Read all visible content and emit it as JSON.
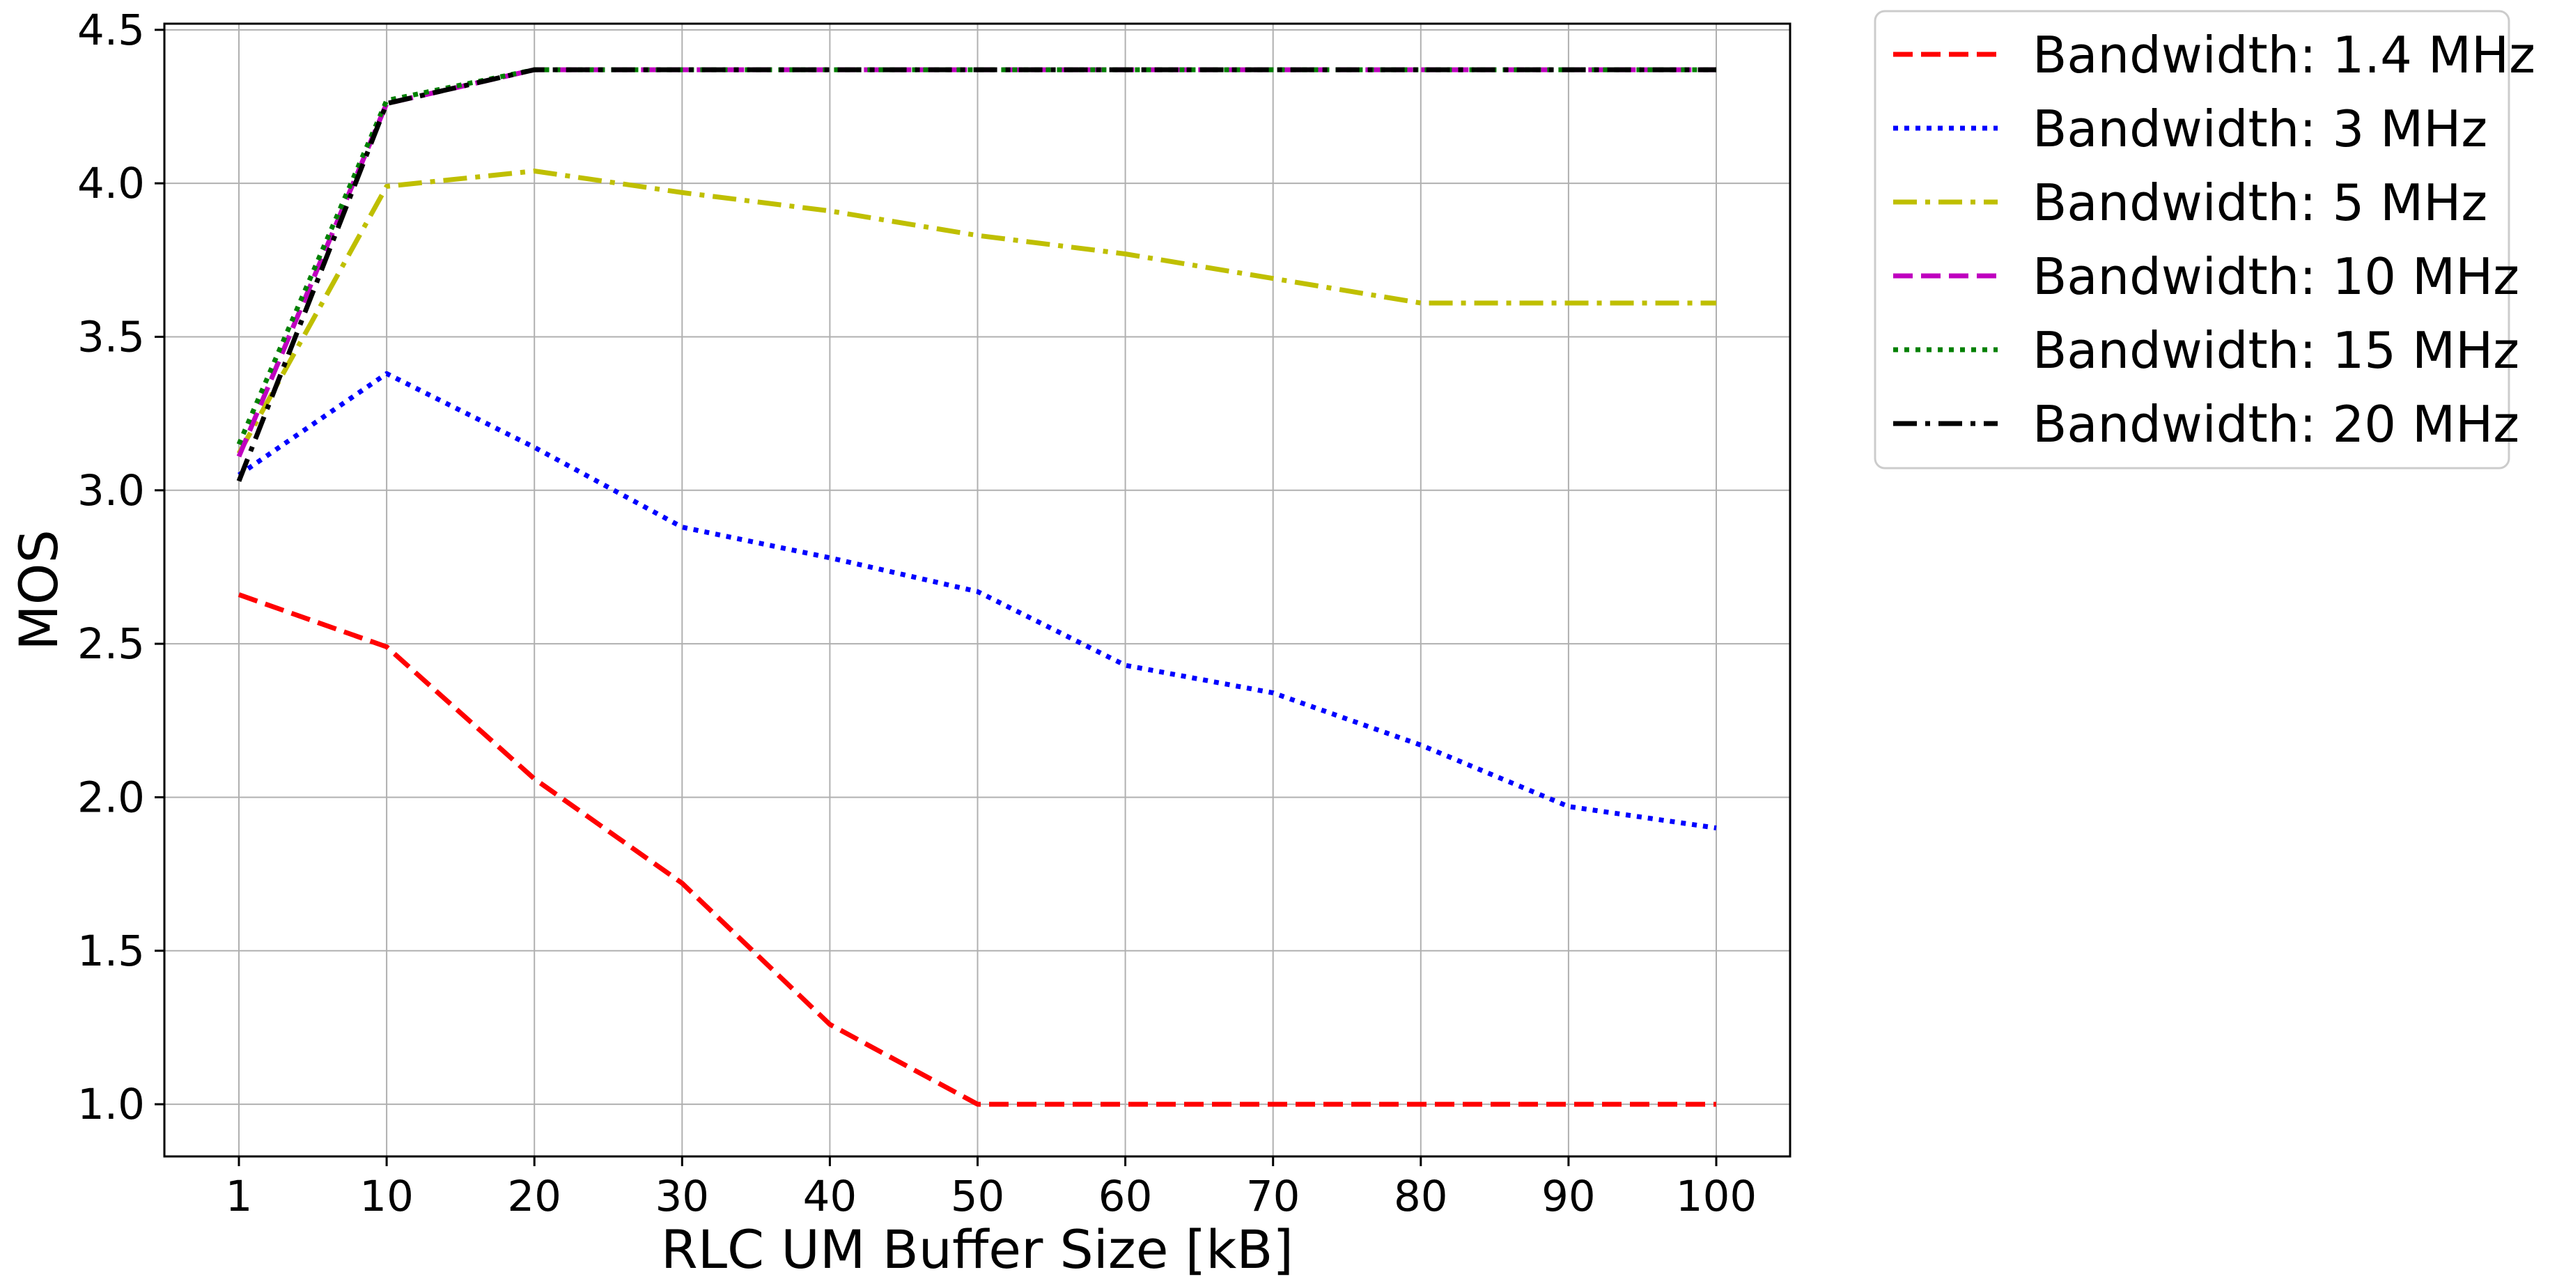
{
  "chart_data": {
    "type": "line",
    "title": "",
    "xlabel": "RLC UM Buffer Size [kB]",
    "ylabel": "MOS",
    "categories": [
      "1",
      "10",
      "20",
      "30",
      "40",
      "50",
      "60",
      "70",
      "80",
      "90",
      "100"
    ],
    "y_ticks": [
      "1.0",
      "1.5",
      "2.0",
      "2.5",
      "3.0",
      "3.5",
      "4.0",
      "4.5"
    ],
    "ylim": [
      0.83,
      4.52
    ],
    "grid": true,
    "legend_position": "outside-top-right",
    "series": [
      {
        "name": "Bandwidth: 1.4 MHz",
        "color": "#ff0000",
        "style": "dashed",
        "values": [
          2.66,
          2.49,
          2.06,
          1.72,
          1.26,
          1.0,
          1.0,
          1.0,
          1.0,
          1.0,
          1.0
        ]
      },
      {
        "name": "Bandwidth: 3 MHz",
        "color": "#0000ff",
        "style": "dotted",
        "values": [
          3.05,
          3.38,
          3.14,
          2.88,
          2.78,
          2.67,
          2.43,
          2.34,
          2.17,
          1.97,
          1.9
        ]
      },
      {
        "name": "Bandwidth: 5 MHz",
        "color": "#bfbf00",
        "style": "dashdot",
        "values": [
          3.12,
          3.99,
          4.04,
          3.97,
          3.91,
          3.83,
          3.77,
          3.69,
          3.61,
          3.61,
          3.61
        ]
      },
      {
        "name": "Bandwidth: 10 MHz",
        "color": "#bf00bf",
        "style": "dashed",
        "values": [
          3.11,
          4.26,
          4.37,
          4.37,
          4.37,
          4.37,
          4.37,
          4.37,
          4.37,
          4.37,
          4.37
        ]
      },
      {
        "name": "Bandwidth: 15 MHz",
        "color": "#008000",
        "style": "dotted",
        "values": [
          3.15,
          4.27,
          4.37,
          4.37,
          4.37,
          4.37,
          4.37,
          4.37,
          4.37,
          4.37,
          4.37
        ]
      },
      {
        "name": "Bandwidth: 20 MHz",
        "color": "#000000",
        "style": "dashdot",
        "values": [
          3.03,
          4.26,
          4.37,
          4.37,
          4.37,
          4.37,
          4.37,
          4.37,
          4.37,
          4.37,
          4.37
        ]
      }
    ]
  }
}
